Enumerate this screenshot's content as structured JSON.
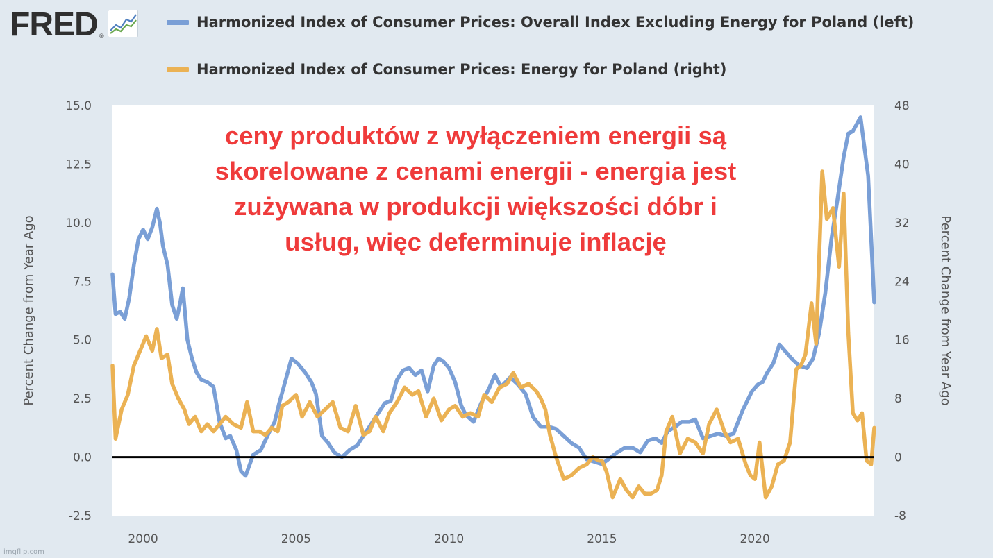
{
  "logo": {
    "text": "FRED",
    "reg_mark": "®"
  },
  "legend": [
    {
      "label": "Harmonized Index of Consumer Prices: Overall Index Excluding Energy for Poland (left)",
      "color": "#7a9fd6"
    },
    {
      "label": "Harmonized Index of Consumer Prices: Energy for Poland (right)",
      "color": "#ebb254"
    }
  ],
  "annotation": "ceny produktów z wyłączeniem energii są skorelowane z cenami energii - energia jest zużywana w produkcji większości dóbr i usług, więc deferminuje inflację",
  "watermark": "imgflip.com",
  "chart_data": {
    "type": "line",
    "ylabel_left": "Percent Change from Year Ago",
    "ylabel_right": "Percent Change from Year Ago",
    "xlim": [
      1999,
      2023.9
    ],
    "ylim_left": [
      -2.5,
      15
    ],
    "ylim_right": [
      -8,
      48
    ],
    "x_ticks": [
      2000,
      2005,
      2010,
      2015,
      2020
    ],
    "y_ticks_left": [
      "-2.5",
      "0.0",
      "2.5",
      "5.0",
      "7.5",
      "10.0",
      "12.5",
      "15.0"
    ],
    "y_ticks_right": [
      "-8",
      "0",
      "8",
      "16",
      "24",
      "32",
      "40",
      "48"
    ],
    "zero_line": true,
    "series": [
      {
        "name": "Harmonized Index of Consumer Prices: Overall Index Excluding Energy for Poland (left)",
        "axis": "left",
        "color": "#7a9fd6",
        "x": [
          1999.0,
          1999.1,
          1999.25,
          1999.4,
          1999.55,
          1999.7,
          1999.85,
          2000.0,
          2000.15,
          2000.3,
          2000.45,
          2000.55,
          2000.65,
          2000.8,
          2000.95,
          2001.1,
          2001.2,
          2001.3,
          2001.45,
          2001.6,
          2001.75,
          2001.9,
          2002.1,
          2002.3,
          2002.5,
          2002.7,
          2002.85,
          2003.05,
          2003.2,
          2003.35,
          2003.6,
          2003.85,
          2004.1,
          2004.3,
          2004.45,
          2004.6,
          2004.85,
          2005.05,
          2005.3,
          2005.5,
          2005.65,
          2005.85,
          2006.05,
          2006.25,
          2006.5,
          2006.75,
          2007.0,
          2007.25,
          2007.5,
          2007.75,
          2007.9,
          2008.1,
          2008.3,
          2008.5,
          2008.7,
          2008.9,
          2009.1,
          2009.3,
          2009.5,
          2009.65,
          2009.8,
          2010.0,
          2010.2,
          2010.4,
          2010.55,
          2010.8,
          2011.05,
          2011.3,
          2011.5,
          2011.7,
          2011.85,
          2012.0,
          2012.25,
          2012.5,
          2012.75,
          2013.0,
          2013.25,
          2013.5,
          2013.75,
          2014.0,
          2014.25,
          2014.5,
          2014.75,
          2015.0,
          2015.2,
          2015.5,
          2015.75,
          2016.0,
          2016.25,
          2016.5,
          2016.75,
          2016.95,
          2017.15,
          2017.4,
          2017.6,
          2017.85,
          2018.05,
          2018.3,
          2018.55,
          2018.8,
          2019.05,
          2019.3,
          2019.6,
          2019.9,
          2020.1,
          2020.25,
          2020.4,
          2020.6,
          2020.8,
          2021.0,
          2021.2,
          2021.45,
          2021.7,
          2021.9,
          2022.1,
          2022.3,
          2022.5,
          2022.7,
          2022.9,
          2023.05,
          2023.2,
          2023.45,
          2023.7,
          2023.9
        ],
        "values": [
          7.8,
          6.1,
          6.2,
          5.9,
          6.8,
          8.2,
          9.3,
          9.7,
          9.3,
          9.8,
          10.6,
          10.0,
          9.0,
          8.2,
          6.5,
          5.9,
          6.5,
          7.2,
          5.0,
          4.2,
          3.6,
          3.3,
          3.2,
          3.0,
          1.5,
          0.8,
          0.9,
          0.3,
          -0.6,
          -0.8,
          0.1,
          0.3,
          1.0,
          1.5,
          2.3,
          3.0,
          4.2,
          4.0,
          3.6,
          3.2,
          2.7,
          0.9,
          0.6,
          0.2,
          0.0,
          0.3,
          0.5,
          1.0,
          1.5,
          2.0,
          2.3,
          2.4,
          3.3,
          3.7,
          3.8,
          3.5,
          3.7,
          2.8,
          3.9,
          4.2,
          4.1,
          3.8,
          3.2,
          2.2,
          1.8,
          1.5,
          2.3,
          2.9,
          3.5,
          3.0,
          3.2,
          3.4,
          3.1,
          2.7,
          1.7,
          1.3,
          1.3,
          1.2,
          0.9,
          0.6,
          0.4,
          -0.1,
          -0.2,
          -0.3,
          -0.1,
          0.2,
          0.4,
          0.4,
          0.2,
          0.7,
          0.8,
          0.6,
          1.1,
          1.3,
          1.5,
          1.5,
          1.6,
          0.8,
          0.9,
          1.0,
          0.9,
          1.0,
          2.0,
          2.8,
          3.1,
          3.2,
          3.6,
          4.0,
          4.8,
          4.5,
          4.2,
          3.9,
          3.8,
          4.2,
          5.3,
          7.0,
          9.3,
          11.0,
          12.8,
          13.8,
          13.9,
          14.5,
          12.0,
          6.6
        ]
      },
      {
        "name": "Harmonized Index of Consumer Prices: Energy for Poland (right)",
        "axis": "right",
        "color": "#ebb254",
        "x": [
          1999.0,
          1999.1,
          1999.3,
          1999.5,
          1999.7,
          1999.9,
          2000.1,
          2000.3,
          2000.45,
          2000.6,
          2000.8,
          2000.95,
          2001.15,
          2001.35,
          2001.5,
          2001.7,
          2001.9,
          2002.1,
          2002.3,
          2002.5,
          2002.7,
          2002.95,
          2003.2,
          2003.4,
          2003.6,
          2003.8,
          2004.0,
          2004.2,
          2004.4,
          2004.55,
          2004.75,
          2005.0,
          2005.2,
          2005.45,
          2005.7,
          2005.95,
          2006.2,
          2006.45,
          2006.7,
          2006.95,
          2007.2,
          2007.4,
          2007.6,
          2007.85,
          2008.05,
          2008.3,
          2008.55,
          2008.8,
          2009.0,
          2009.25,
          2009.5,
          2009.75,
          2010.0,
          2010.2,
          2010.45,
          2010.7,
          2010.95,
          2011.15,
          2011.4,
          2011.65,
          2011.9,
          2012.1,
          2012.35,
          2012.6,
          2012.85,
          2013.0,
          2013.15,
          2013.3,
          2013.5,
          2013.75,
          2014.0,
          2014.25,
          2014.5,
          2014.7,
          2014.9,
          2015.0,
          2015.15,
          2015.35,
          2015.6,
          2015.8,
          2016.0,
          2016.2,
          2016.4,
          2016.6,
          2016.8,
          2016.95,
          2017.1,
          2017.3,
          2017.55,
          2017.8,
          2018.05,
          2018.3,
          2018.5,
          2018.75,
          2019.0,
          2019.2,
          2019.45,
          2019.7,
          2019.85,
          2020.0,
          2020.15,
          2020.35,
          2020.55,
          2020.75,
          2020.95,
          2021.15,
          2021.35,
          2021.5,
          2021.65,
          2021.85,
          2022.0,
          2022.2,
          2022.35,
          2022.55,
          2022.75,
          2022.9,
          2023.05,
          2023.2,
          2023.35,
          2023.5,
          2023.65,
          2023.8,
          2023.9
        ],
        "values": [
          12.5,
          2.5,
          6.5,
          8.5,
          12.5,
          14.5,
          16.5,
          14.5,
          17.5,
          13.5,
          14.0,
          10.0,
          8.0,
          6.5,
          4.5,
          5.5,
          3.5,
          4.5,
          3.5,
          4.5,
          5.5,
          4.5,
          4.0,
          7.5,
          3.5,
          3.5,
          3.0,
          4.0,
          3.5,
          7.0,
          7.5,
          8.5,
          5.5,
          7.5,
          5.5,
          6.5,
          7.5,
          4.0,
          3.5,
          7.0,
          3.0,
          3.5,
          5.5,
          3.5,
          6.0,
          7.5,
          9.5,
          8.5,
          9.0,
          5.5,
          8.0,
          5.0,
          6.5,
          7.0,
          5.5,
          6.0,
          5.5,
          8.5,
          7.5,
          9.5,
          10.0,
          11.5,
          9.5,
          10.0,
          9.0,
          8.0,
          6.5,
          3.0,
          0.0,
          -3.0,
          -2.5,
          -1.5,
          -1.0,
          0.0,
          -0.5,
          -0.5,
          -2.0,
          -5.5,
          -3.0,
          -4.5,
          -5.5,
          -4.0,
          -5.0,
          -5.0,
          -4.5,
          -2.5,
          3.5,
          5.5,
          0.5,
          2.5,
          2.0,
          0.5,
          4.5,
          6.5,
          3.5,
          2.0,
          2.5,
          -1.0,
          -2.5,
          -3.0,
          2.0,
          -5.5,
          -4.0,
          -1.0,
          -0.5,
          2.0,
          12.0,
          12.5,
          14.0,
          21.0,
          15.5,
          39.0,
          32.5,
          34.0,
          26.0,
          36.0,
          17.0,
          6.0,
          5.0,
          6.0,
          -0.5,
          -1.0,
          4.0
        ]
      }
    ]
  }
}
